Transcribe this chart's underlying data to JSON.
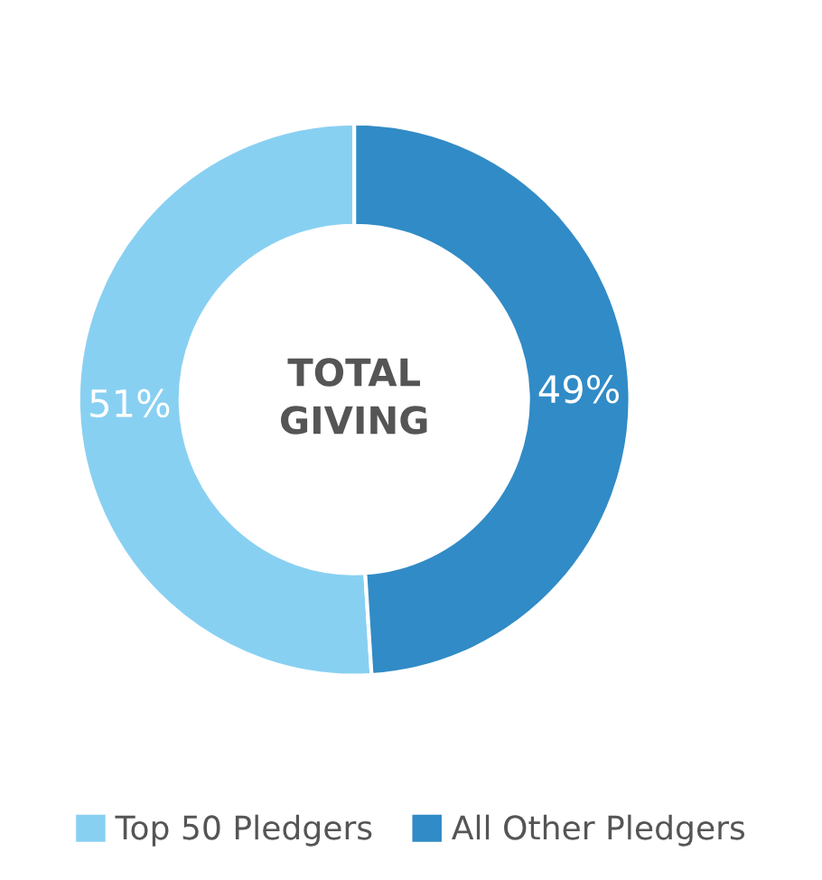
{
  "chart_data": {
    "type": "donut",
    "categories": [
      "Top 50 Pledgers",
      "All Other Pledgers"
    ],
    "values": [
      51,
      49
    ],
    "colors": [
      "#88d0f2",
      "#318bc6"
    ],
    "value_labels": [
      "51%",
      "49%"
    ],
    "annotations": [
      "TOTAL\nGIVING"
    ],
    "legend": "bottom"
  }
}
